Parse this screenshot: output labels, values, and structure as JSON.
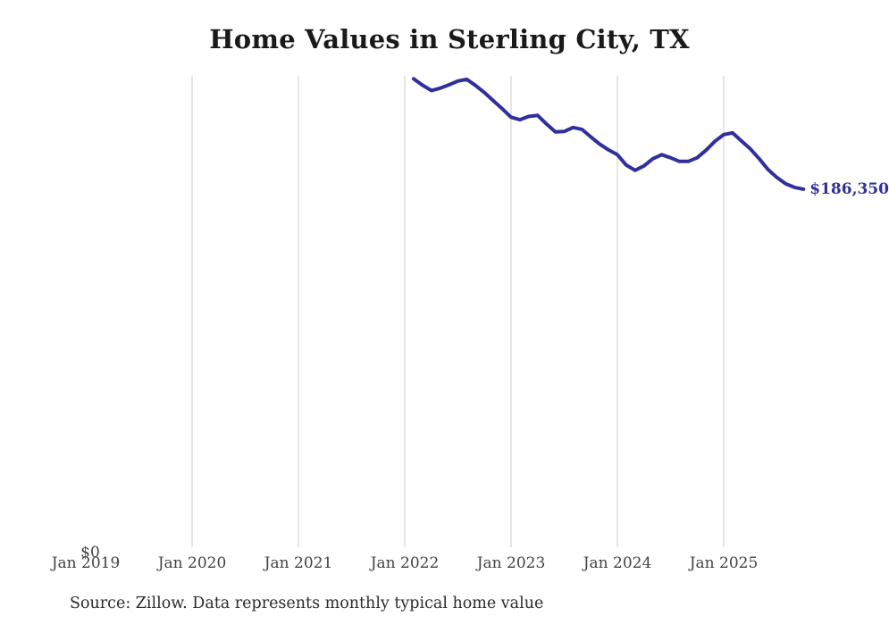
{
  "title": "Home Values in Sterling City, TX",
  "end_label": "$186,350",
  "y_zero_label": "$0",
  "source_note": "Source: Zillow. Data represents monthly typical home value",
  "colors": {
    "line": "#30309c",
    "grid": "#cdcdcd",
    "title": "#1a1a1a",
    "axis": "#434343",
    "source": "#2b2b2b",
    "bg": "#ffffff"
  },
  "chart_data": {
    "type": "line",
    "title": "Home Values in Sterling City, TX",
    "series_name": "Monthly typical home value",
    "xlabel": "",
    "ylabel": "",
    "ylim": [
      0,
      245000
    ],
    "grid": "vertical-only",
    "legend": "none",
    "x_tick_labels": [
      "Jan 2019",
      "Jan 2020",
      "Jan 2021",
      "Jan 2022",
      "Jan 2023",
      "Jan 2024",
      "Jan 2025"
    ],
    "y_tick_labels": [
      "$0"
    ],
    "end_annotation": "$186,350",
    "x": [
      "Feb 2022",
      "Mar 2022",
      "Apr 2022",
      "May 2022",
      "Jun 2022",
      "Jul 2022",
      "Aug 2022",
      "Sep 2022",
      "Oct 2022",
      "Nov 2022",
      "Dec 2022",
      "Jan 2023",
      "Feb 2023",
      "Mar 2023",
      "Apr 2023",
      "May 2023",
      "Jun 2023",
      "Jul 2023",
      "Aug 2023",
      "Sep 2023",
      "Oct 2023",
      "Nov 2023",
      "Dec 2023",
      "Jan 2024",
      "Feb 2024",
      "Mar 2024",
      "Apr 2024",
      "May 2024",
      "Jun 2024",
      "Jul 2024",
      "Aug 2024",
      "Sep 2024",
      "Oct 2024",
      "Nov 2024",
      "Dec 2024",
      "Jan 2025",
      "Feb 2025",
      "Mar 2025",
      "Apr 2025",
      "May 2025",
      "Jun 2025",
      "Jul 2025",
      "Aug 2025",
      "Sep 2025",
      "Oct 2025"
    ],
    "values": [
      243500,
      240200,
      237400,
      238600,
      240400,
      242300,
      243200,
      240000,
      236300,
      232100,
      228000,
      223600,
      222300,
      224000,
      224500,
      220100,
      216000,
      216200,
      218300,
      217300,
      213400,
      209700,
      206700,
      204200,
      198800,
      196100,
      198400,
      202100,
      204200,
      202600,
      200700,
      200700,
      202600,
      206500,
      211100,
      214600,
      215500,
      211300,
      207200,
      202100,
      196500,
      192400,
      189100,
      187250,
      186350
    ]
  }
}
